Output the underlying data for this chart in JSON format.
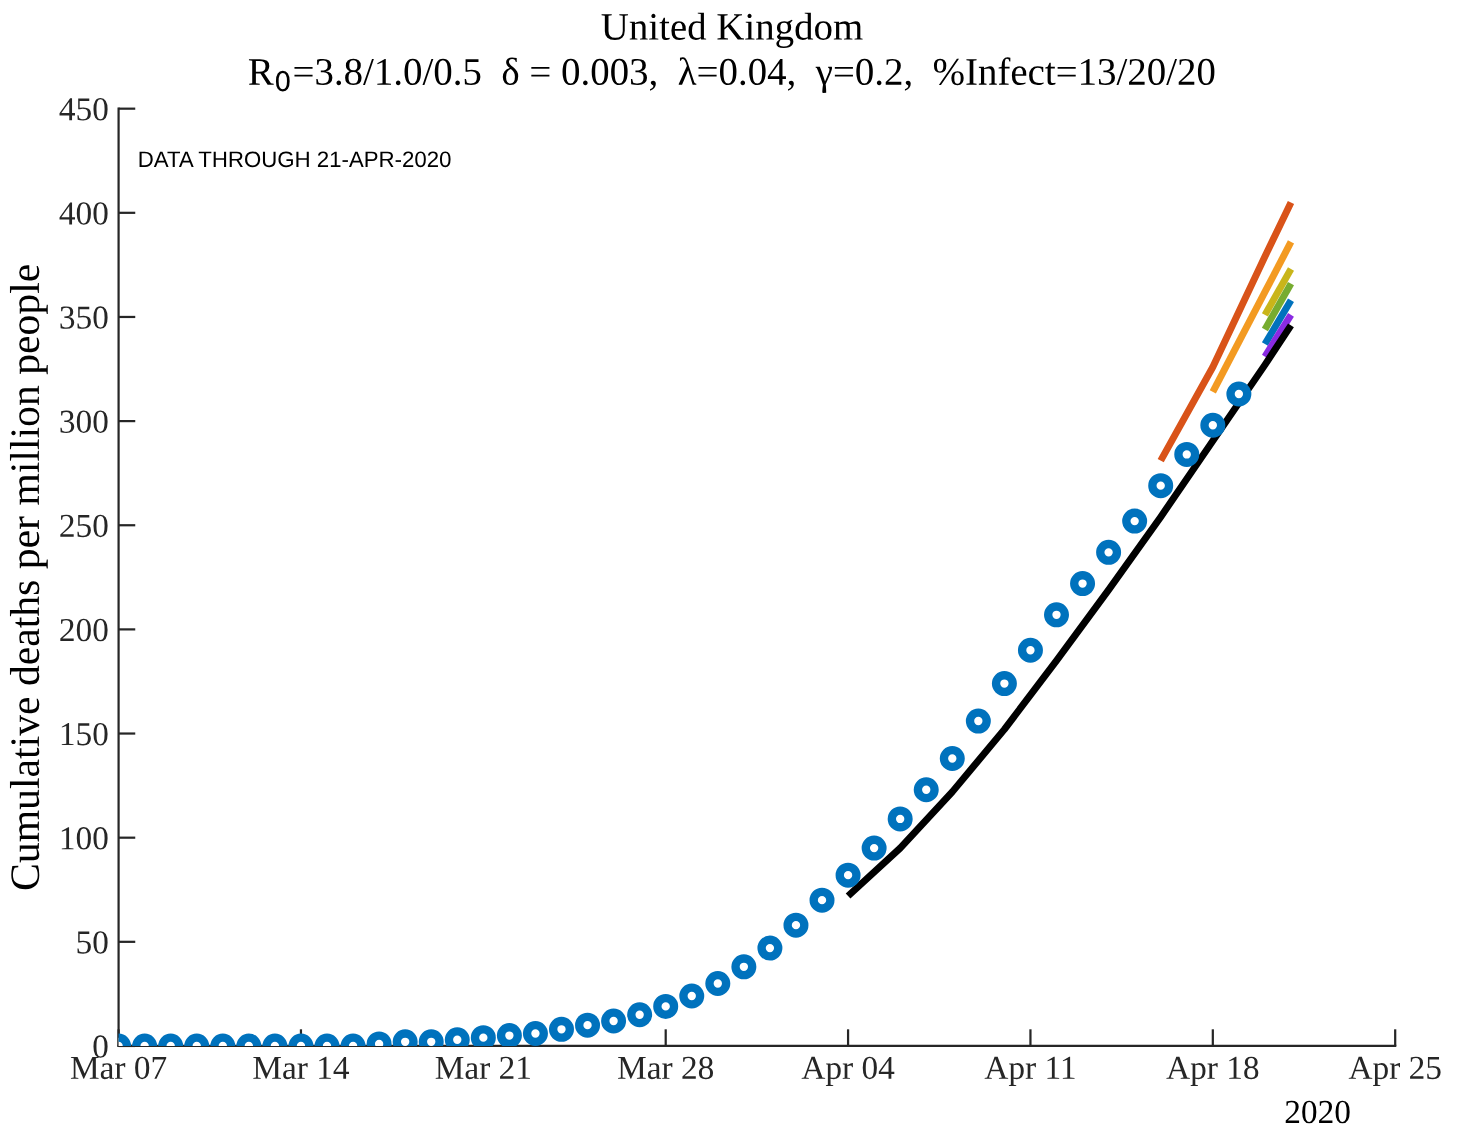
{
  "chart_data": {
    "type": "line",
    "title": "United Kingdom",
    "subtitle": "R$_{0}$=3.8/1.0/0.5  δ = 0.003,  λ=0.04,  γ=0.2,  %Infect=13/20/20",
    "ylabel": "Cumulative deaths per million people",
    "annotations": [
      "DATA THROUGH 21-APR-2020",
      "2020"
    ],
    "xlim": [
      "2020-03-07",
      "2020-04-25"
    ],
    "xticks": [
      {
        "value": "2020-03-07",
        "label": "Mar 07"
      },
      {
        "value": "2020-03-14",
        "label": "Mar 14"
      },
      {
        "value": "2020-03-21",
        "label": "Mar 21"
      },
      {
        "value": "2020-03-28",
        "label": "Mar 28"
      },
      {
        "value": "2020-04-04",
        "label": "Apr 04"
      },
      {
        "value": "2020-04-11",
        "label": "Apr 11"
      },
      {
        "value": "2020-04-18",
        "label": "Apr 18"
      },
      {
        "value": "2020-04-25",
        "label": "Apr 25"
      }
    ],
    "ylim": [
      0,
      450
    ],
    "yticks": [
      0,
      50,
      100,
      150,
      200,
      250,
      300,
      350,
      400,
      450
    ],
    "grid": false,
    "legend": false,
    "series": [
      {
        "color": "#d95319",
        "x": [
          "2020-04-16",
          "2020-04-18",
          "2020-04-20",
          "2020-04-21"
        ],
        "values": [
          281,
          326,
          379,
          405
        ]
      },
      {
        "color": "#f39a21",
        "x": [
          "2020-04-18",
          "2020-04-20",
          "2020-04-21"
        ],
        "values": [
          314,
          362,
          386
        ]
      },
      {
        "color": "#c9b51a",
        "x": [
          "2020-04-20",
          "2020-04-21"
        ],
        "values": [
          351,
          373
        ]
      },
      {
        "color": "#77ac30",
        "x": [
          "2020-04-20",
          "2020-04-21"
        ],
        "values": [
          344,
          366
        ]
      },
      {
        "color": "#0072bd",
        "x": [
          "2020-04-20",
          "2020-04-21"
        ],
        "values": [
          337,
          358
        ]
      },
      {
        "color": "#8a2be2",
        "x": [
          "2020-04-20",
          "2020-04-21"
        ],
        "values": [
          331,
          351
        ]
      },
      {
        "color": "#000000",
        "x": [
          "2020-04-04",
          "2020-04-06",
          "2020-04-08",
          "2020-04-10",
          "2020-04-12",
          "2020-04-14",
          "2020-04-16",
          "2020-04-20",
          "2020-04-21"
        ],
        "values": [
          72,
          95,
          122,
          152,
          185,
          219,
          254,
          327,
          346
        ]
      },
      {
        "type": "scatter",
        "marker": "circle",
        "color": "#0072bd",
        "x": [
          "2020-03-07",
          "2020-03-08",
          "2020-03-09",
          "2020-03-10",
          "2020-03-11",
          "2020-03-12",
          "2020-03-13",
          "2020-03-14",
          "2020-03-15",
          "2020-03-16",
          "2020-03-17",
          "2020-03-18",
          "2020-03-19",
          "2020-03-20",
          "2020-03-21",
          "2020-03-22",
          "2020-03-23",
          "2020-03-24",
          "2020-03-25",
          "2020-03-26",
          "2020-03-27",
          "2020-03-28",
          "2020-03-29",
          "2020-03-30",
          "2020-03-31",
          "2020-04-01",
          "2020-04-02",
          "2020-04-03",
          "2020-04-04",
          "2020-04-05",
          "2020-04-06",
          "2020-04-07",
          "2020-04-08",
          "2020-04-09",
          "2020-04-10",
          "2020-04-11",
          "2020-04-12",
          "2020-04-13",
          "2020-04-14",
          "2020-04-15",
          "2020-04-16",
          "2020-04-17",
          "2020-04-18",
          "2020-04-19"
        ],
        "values": [
          0,
          0,
          0,
          0,
          0,
          0,
          0,
          0,
          0,
          0,
          1,
          2,
          2,
          3,
          4,
          5,
          6,
          8,
          10,
          12,
          15,
          19,
          24,
          30,
          38,
          47,
          58,
          70,
          82,
          95,
          109,
          123,
          138,
          156,
          174,
          190,
          207,
          222,
          237,
          252,
          269,
          284,
          298,
          313
        ]
      }
    ]
  }
}
